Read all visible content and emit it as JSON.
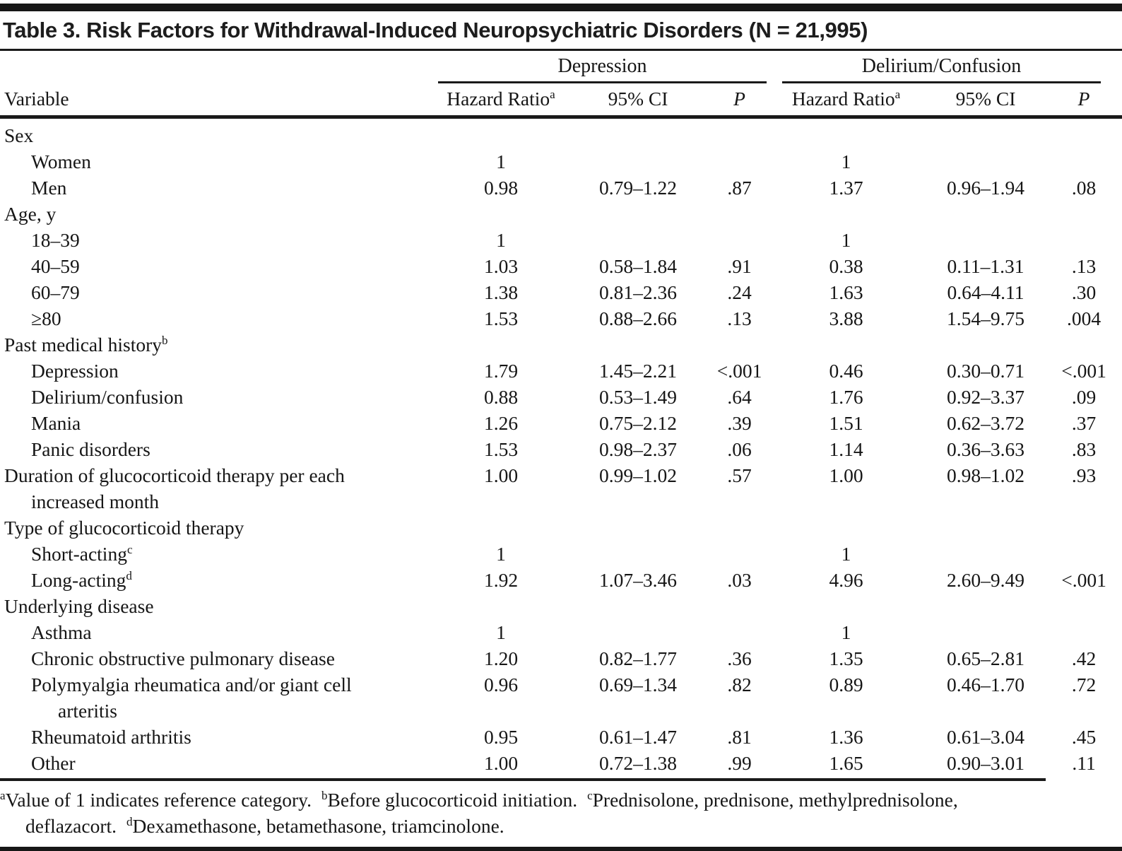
{
  "title": "Table 3. Risk Factors for Withdrawal-Induced Neuropsychiatric Disorders (N = 21,995)",
  "columns": {
    "variable": "Variable",
    "groups": [
      {
        "label": "Depression"
      },
      {
        "label": "Delirium/Confusion"
      }
    ],
    "sub": {
      "hazard_ratio": "Hazard Ratio",
      "hazard_ratio_sup": "a",
      "ci": "95% CI",
      "p": "P"
    }
  },
  "rows": [
    {
      "label": "Sex",
      "indent": 0,
      "type": "group"
    },
    {
      "label": "Women",
      "indent": 1,
      "dep": {
        "hr": "1",
        "ci": "",
        "p": ""
      },
      "del": {
        "hr": "1",
        "ci": "",
        "p": ""
      }
    },
    {
      "label": "Men",
      "indent": 1,
      "dep": {
        "hr": "0.98",
        "ci": "0.79–1.22",
        "p": ".87"
      },
      "del": {
        "hr": "1.37",
        "ci": "0.96–1.94",
        "p": ".08"
      }
    },
    {
      "label": "Age, y",
      "indent": 0,
      "type": "group"
    },
    {
      "label": "18–39",
      "indent": 1,
      "dep": {
        "hr": "1",
        "ci": "",
        "p": ""
      },
      "del": {
        "hr": "1",
        "ci": "",
        "p": ""
      }
    },
    {
      "label": "40–59",
      "indent": 1,
      "dep": {
        "hr": "1.03",
        "ci": "0.58–1.84",
        "p": ".91"
      },
      "del": {
        "hr": "0.38",
        "ci": "0.11–1.31",
        "p": ".13"
      }
    },
    {
      "label": "60–79",
      "indent": 1,
      "dep": {
        "hr": "1.38",
        "ci": "0.81–2.36",
        "p": ".24"
      },
      "del": {
        "hr": "1.63",
        "ci": "0.64–4.11",
        "p": ".30"
      }
    },
    {
      "label": "≥80",
      "indent": 1,
      "dep": {
        "hr": "1.53",
        "ci": "0.88–2.66",
        "p": ".13"
      },
      "del": {
        "hr": "3.88",
        "ci": "1.54–9.75",
        "p": ".004"
      }
    },
    {
      "label": "Past medical history",
      "sup": "b",
      "indent": 0,
      "type": "group"
    },
    {
      "label": "Depression",
      "indent": 1,
      "dep": {
        "hr": "1.79",
        "ci": "1.45–2.21",
        "p": "<.001"
      },
      "del": {
        "hr": "0.46",
        "ci": "0.30–0.71",
        "p": "<.001"
      }
    },
    {
      "label": "Delirium/confusion",
      "indent": 1,
      "dep": {
        "hr": "0.88",
        "ci": "0.53–1.49",
        "p": ".64"
      },
      "del": {
        "hr": "1.76",
        "ci": "0.92–3.37",
        "p": ".09"
      }
    },
    {
      "label": "Mania",
      "indent": 1,
      "dep": {
        "hr": "1.26",
        "ci": "0.75–2.12",
        "p": ".39"
      },
      "del": {
        "hr": "1.51",
        "ci": "0.62–3.72",
        "p": ".37"
      }
    },
    {
      "label": "Panic disorders",
      "indent": 1,
      "dep": {
        "hr": "1.53",
        "ci": "0.98–2.37",
        "p": ".06"
      },
      "del": {
        "hr": "1.14",
        "ci": "0.36–3.63",
        "p": ".83"
      }
    },
    {
      "label": "Duration of glucocorticoid therapy per each",
      "label2": "increased month",
      "indent": 0,
      "dep": {
        "hr": "1.00",
        "ci": "0.99–1.02",
        "p": ".57"
      },
      "del": {
        "hr": "1.00",
        "ci": "0.98–1.02",
        "p": ".93"
      }
    },
    {
      "label": "Type of glucocorticoid therapy",
      "indent": 0,
      "type": "group"
    },
    {
      "label": "Short-acting",
      "sup": "c",
      "indent": 1,
      "dep": {
        "hr": "1",
        "ci": "",
        "p": ""
      },
      "del": {
        "hr": "1",
        "ci": "",
        "p": ""
      }
    },
    {
      "label": "Long-acting",
      "sup": "d",
      "indent": 1,
      "dep": {
        "hr": "1.92",
        "ci": "1.07–3.46",
        "p": ".03"
      },
      "del": {
        "hr": "4.96",
        "ci": "2.60–9.49",
        "p": "<.001"
      }
    },
    {
      "label": "Underlying disease",
      "indent": 0,
      "type": "group"
    },
    {
      "label": "Asthma",
      "indent": 1,
      "dep": {
        "hr": "1",
        "ci": "",
        "p": ""
      },
      "del": {
        "hr": "1",
        "ci": "",
        "p": ""
      }
    },
    {
      "label": "Chronic obstructive pulmonary disease",
      "indent": 1,
      "dep": {
        "hr": "1.20",
        "ci": "0.82–1.77",
        "p": ".36"
      },
      "del": {
        "hr": "1.35",
        "ci": "0.65–2.81",
        "p": ".42"
      }
    },
    {
      "label": "Polymyalgia rheumatica and/or giant cell",
      "label2": "arteritis",
      "indent": 1,
      "dep": {
        "hr": "0.96",
        "ci": "0.69–1.34",
        "p": ".82"
      },
      "del": {
        "hr": "0.89",
        "ci": "0.46–1.70",
        "p": ".72"
      }
    },
    {
      "label": "Rheumatoid arthritis",
      "indent": 1,
      "dep": {
        "hr": "0.95",
        "ci": "0.61–1.47",
        "p": ".81"
      },
      "del": {
        "hr": "1.36",
        "ci": "0.61–3.04",
        "p": ".45"
      }
    },
    {
      "label": "Other",
      "indent": 1,
      "dep": {
        "hr": "1.00",
        "ci": "0.72–1.38",
        "p": ".99"
      },
      "del": {
        "hr": "1.65",
        "ci": "0.90–3.01",
        "p": ".11"
      }
    }
  ],
  "footnotes": [
    {
      "sup": "a",
      "text": "Value of 1 indicates reference category."
    },
    {
      "sup": "b",
      "text": "Before glucocorticoid initiation."
    },
    {
      "sup": "c",
      "text": "Prednisolone, prednisone, methylprednisolone, deflazacort."
    },
    {
      "sup": "d",
      "text": "Dexamethasone, betamethasone, triamcinolone."
    }
  ]
}
